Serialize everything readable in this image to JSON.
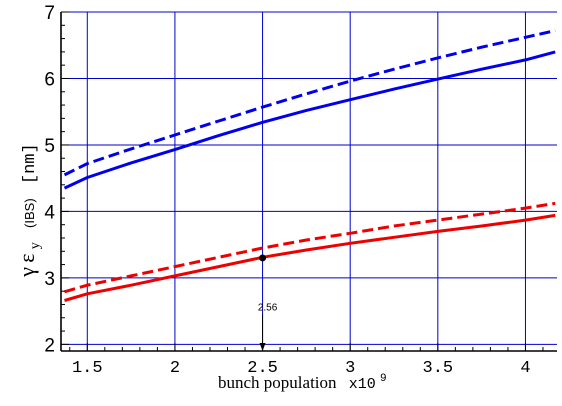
{
  "chart_data": {
    "type": "line",
    "xlabel": "bunch population",
    "xlabel_multiplier": "x10",
    "xlabel_multiplier_exp": "9",
    "ylabel": {
      "symbol_gamma": "γ",
      "symbol_eps": "ε",
      "subscript": "y",
      "tag": "(IBS)",
      "units": "[nm]"
    },
    "xlim": [
      1.35,
      4.18
    ],
    "ylim": [
      1.9,
      7.0
    ],
    "x_ticks": [
      1.5,
      2,
      2.5,
      3,
      3.5,
      4
    ],
    "x_tick_labels": [
      "1.5",
      "2",
      "2.5",
      "3",
      "3.5",
      "4"
    ],
    "y_ticks": [
      2,
      3,
      4,
      5,
      6,
      7
    ],
    "y_tick_labels": [
      "2",
      "3",
      "4",
      "5",
      "6",
      "7"
    ],
    "grid": true,
    "grid_color": "#0000cc",
    "series": [
      {
        "color": "#0000ee",
        "dash": true,
        "x": [
          1.37,
          1.5,
          1.75,
          2.0,
          2.25,
          2.5,
          2.75,
          3.0,
          3.25,
          3.5,
          3.75,
          4.0,
          4.17
        ],
        "y": [
          4.55,
          4.72,
          4.94,
          5.15,
          5.36,
          5.57,
          5.77,
          5.96,
          6.14,
          6.31,
          6.47,
          6.62,
          6.72
        ]
      },
      {
        "color": "#0000ee",
        "dash": false,
        "x": [
          1.37,
          1.5,
          1.75,
          2.0,
          2.25,
          2.5,
          2.75,
          3.0,
          3.25,
          3.5,
          3.75,
          4.0,
          4.17
        ],
        "y": [
          4.35,
          4.51,
          4.73,
          4.93,
          5.14,
          5.34,
          5.52,
          5.68,
          5.84,
          5.99,
          6.14,
          6.28,
          6.4
        ]
      },
      {
        "color": "#ee0000",
        "dash": true,
        "x": [
          1.37,
          1.5,
          1.75,
          2.0,
          2.25,
          2.5,
          2.75,
          3.0,
          3.25,
          3.5,
          3.75,
          4.0,
          4.17
        ],
        "y": [
          2.79,
          2.89,
          3.03,
          3.17,
          3.31,
          3.45,
          3.57,
          3.67,
          3.78,
          3.87,
          3.96,
          4.05,
          4.12
        ]
      },
      {
        "color": "#ee0000",
        "dash": false,
        "x": [
          1.37,
          1.5,
          1.75,
          2.0,
          2.25,
          2.5,
          2.75,
          3.0,
          3.25,
          3.5,
          3.75,
          4.0,
          4.17
        ],
        "y": [
          2.66,
          2.76,
          2.89,
          3.03,
          3.17,
          3.31,
          3.42,
          3.52,
          3.61,
          3.7,
          3.78,
          3.87,
          3.94
        ]
      }
    ],
    "marker": {
      "x": 2.5,
      "y": 3.3,
      "color": "#000000"
    },
    "annotation": {
      "text": "2.56",
      "x": 2.5,
      "arrow_from_y": 2.45,
      "arrow_to_y": 1.9
    }
  }
}
